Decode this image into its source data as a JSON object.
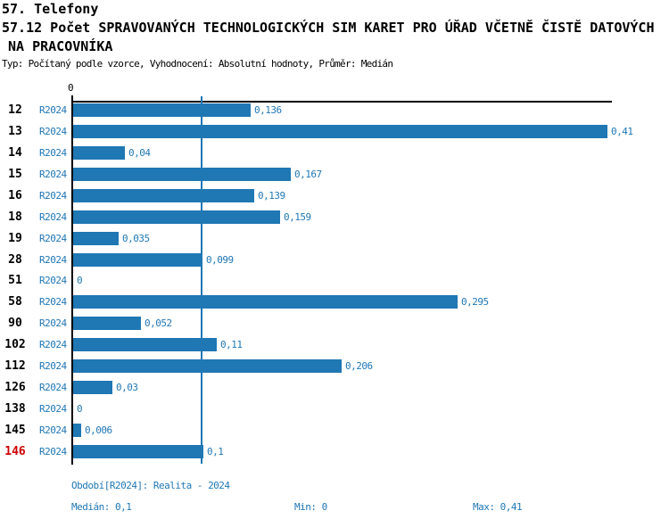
{
  "title": {
    "line1": "57. Telefony",
    "line2": "57.12 Počet SPRAVOVANÝCH TECHNOLOGICKÝCH SIM KARET PRO ÚŘAD VČETNĚ ČISTĚ DATOVÝCH",
    "line3": "NA PRACOVNÍKA",
    "subtitle": "Typ: Počítaný podle vzorce, Vyhodnocení: Absolutní hodnoty, Průměr: Medián"
  },
  "colors": {
    "bar": "#1f77b4",
    "blue_text": "#1f77b4",
    "highlight_row_id": "#cc0000",
    "axis": "#000000",
    "median_line": "#1f77b4"
  },
  "chart_data": {
    "type": "bar",
    "orientation": "horizontal",
    "categories": [
      "12",
      "13",
      "14",
      "15",
      "16",
      "18",
      "19",
      "28",
      "51",
      "58",
      "90",
      "102",
      "112",
      "126",
      "138",
      "145",
      "146"
    ],
    "series_label": "R2024",
    "values": [
      0.136,
      0.41,
      0.04,
      0.167,
      0.139,
      0.159,
      0.035,
      0.099,
      0,
      0.295,
      0.052,
      0.11,
      0.206,
      0.03,
      0,
      0.006,
      0.1
    ],
    "value_labels": [
      "0,136",
      "0,41",
      "0,04",
      "0,167",
      "0,139",
      "0,159",
      "0,035",
      "0,099",
      "0",
      "0,295",
      "0,052",
      "0,11",
      "0,206",
      "0,03",
      "0",
      "0,006",
      "0,1"
    ],
    "xlim": [
      0,
      0.41
    ],
    "x_tick_labels": [
      "0"
    ],
    "median_line_value": 0.1,
    "highlighted_category": "146",
    "grid": "off",
    "legend": "none"
  },
  "footer": {
    "period": "Období[R2024]: Realita - 2024",
    "median": "Medián: 0,1",
    "min": "Min: 0",
    "max": "Max: 0,41"
  }
}
